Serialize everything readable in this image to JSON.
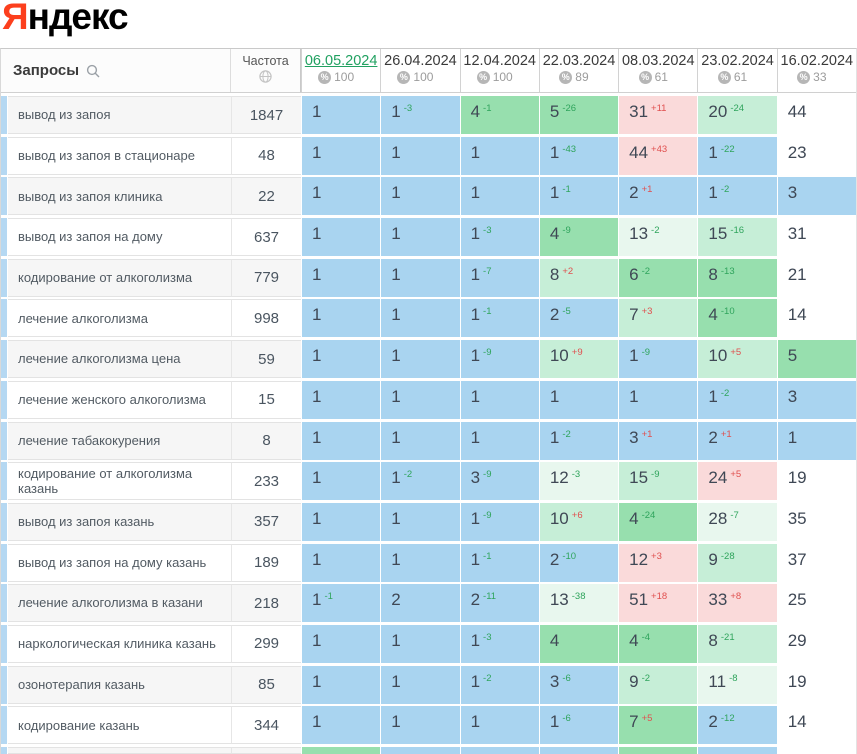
{
  "logo": {
    "first_letter": "Я",
    "rest": "ндекс",
    "first_letter_color": "#fc3f1d"
  },
  "icons": {
    "search_icon": "magnifier-outline",
    "globe_icon": "globe-outline",
    "percent_icon": "%"
  },
  "colors": {
    "top3_blue": "#a9d4f0",
    "top10_green": "#97dfae",
    "light_green": "#c6eed7",
    "pale_green": "#e8f7ee",
    "worse_pink": "#fadada",
    "delta_improved_green": "#2fa45c",
    "delta_worsened_red": "#e0504f",
    "active_date_green": "#21a161",
    "row_stripe_blue": "#b5d8f2"
  },
  "table": {
    "queries_header": "Запросы",
    "frequency_header": "Частота",
    "columns": [
      {
        "date": "06.05.2024",
        "share": "100",
        "active": true
      },
      {
        "date": "26.04.2024",
        "share": "100",
        "active": false
      },
      {
        "date": "12.04.2024",
        "share": "100",
        "active": false
      },
      {
        "date": "22.03.2024",
        "share": "89",
        "active": false
      },
      {
        "date": "08.03.2024",
        "share": "61",
        "active": false
      },
      {
        "date": "23.02.2024",
        "share": "61",
        "active": false
      },
      {
        "date": "16.02.2024",
        "share": "33",
        "active": false
      }
    ],
    "rows": [
      {
        "keyword": "вывод из запоя",
        "frequency": "1847",
        "cells": [
          {
            "pos": "1",
            "bg": "b"
          },
          {
            "pos": "1",
            "delta": "-3",
            "bg": "b"
          },
          {
            "pos": "4",
            "delta": "-1",
            "bg": "g"
          },
          {
            "pos": "5",
            "delta": "-26",
            "bg": "g"
          },
          {
            "pos": "31",
            "delta": "+11",
            "bg": "p"
          },
          {
            "pos": "20",
            "delta": "-24",
            "bg": "lg"
          },
          {
            "pos": "44",
            "bg": "w"
          }
        ]
      },
      {
        "keyword": "вывод из запоя в стационаре",
        "frequency": "48",
        "cells": [
          {
            "pos": "1",
            "bg": "b"
          },
          {
            "pos": "1",
            "bg": "b"
          },
          {
            "pos": "1",
            "bg": "b"
          },
          {
            "pos": "1",
            "delta": "-43",
            "bg": "b"
          },
          {
            "pos": "44",
            "delta": "+43",
            "bg": "p"
          },
          {
            "pos": "1",
            "delta": "-22",
            "bg": "b"
          },
          {
            "pos": "23",
            "bg": "w"
          }
        ]
      },
      {
        "keyword": "вывод из запоя клиника",
        "frequency": "22",
        "cells": [
          {
            "pos": "1",
            "bg": "b"
          },
          {
            "pos": "1",
            "bg": "b"
          },
          {
            "pos": "1",
            "bg": "b"
          },
          {
            "pos": "1",
            "delta": "-1",
            "bg": "b"
          },
          {
            "pos": "2",
            "delta": "+1",
            "bg": "b"
          },
          {
            "pos": "1",
            "delta": "-2",
            "bg": "b"
          },
          {
            "pos": "3",
            "bg": "b"
          }
        ]
      },
      {
        "keyword": "вывод из запоя на дому",
        "frequency": "637",
        "cells": [
          {
            "pos": "1",
            "bg": "b"
          },
          {
            "pos": "1",
            "bg": "b"
          },
          {
            "pos": "1",
            "delta": "-3",
            "bg": "b"
          },
          {
            "pos": "4",
            "delta": "-9",
            "bg": "g"
          },
          {
            "pos": "13",
            "delta": "-2",
            "bg": "vlg"
          },
          {
            "pos": "15",
            "delta": "-16",
            "bg": "lg"
          },
          {
            "pos": "31",
            "bg": "w"
          }
        ]
      },
      {
        "keyword": "кодирование от алкоголизма",
        "frequency": "779",
        "cells": [
          {
            "pos": "1",
            "bg": "b"
          },
          {
            "pos": "1",
            "bg": "b"
          },
          {
            "pos": "1",
            "delta": "-7",
            "bg": "b"
          },
          {
            "pos": "8",
            "delta": "+2",
            "bg": "lg"
          },
          {
            "pos": "6",
            "delta": "-2",
            "bg": "g"
          },
          {
            "pos": "8",
            "delta": "-13",
            "bg": "g"
          },
          {
            "pos": "21",
            "bg": "w"
          }
        ]
      },
      {
        "keyword": "лечение алкоголизма",
        "frequency": "998",
        "cells": [
          {
            "pos": "1",
            "bg": "b"
          },
          {
            "pos": "1",
            "bg": "b"
          },
          {
            "pos": "1",
            "delta": "-1",
            "bg": "b"
          },
          {
            "pos": "2",
            "delta": "-5",
            "bg": "b"
          },
          {
            "pos": "7",
            "delta": "+3",
            "bg": "lg"
          },
          {
            "pos": "4",
            "delta": "-10",
            "bg": "g"
          },
          {
            "pos": "14",
            "bg": "w"
          }
        ]
      },
      {
        "keyword": "лечение алкоголизма цена",
        "frequency": "59",
        "cells": [
          {
            "pos": "1",
            "bg": "b"
          },
          {
            "pos": "1",
            "bg": "b"
          },
          {
            "pos": "1",
            "delta": "-9",
            "bg": "b"
          },
          {
            "pos": "10",
            "delta": "+9",
            "bg": "lg"
          },
          {
            "pos": "1",
            "delta": "-9",
            "bg": "b"
          },
          {
            "pos": "10",
            "delta": "+5",
            "bg": "lg"
          },
          {
            "pos": "5",
            "bg": "g"
          }
        ]
      },
      {
        "keyword": "лечение женского алкоголизма",
        "frequency": "15",
        "cells": [
          {
            "pos": "1",
            "bg": "b"
          },
          {
            "pos": "1",
            "bg": "b"
          },
          {
            "pos": "1",
            "bg": "b"
          },
          {
            "pos": "1",
            "bg": "b"
          },
          {
            "pos": "1",
            "bg": "b"
          },
          {
            "pos": "1",
            "delta": "-2",
            "bg": "b"
          },
          {
            "pos": "3",
            "bg": "b"
          }
        ]
      },
      {
        "keyword": "лечение табакокурения",
        "frequency": "8",
        "cells": [
          {
            "pos": "1",
            "bg": "b"
          },
          {
            "pos": "1",
            "bg": "b"
          },
          {
            "pos": "1",
            "bg": "b"
          },
          {
            "pos": "1",
            "delta": "-2",
            "bg": "b"
          },
          {
            "pos": "3",
            "delta": "+1",
            "bg": "b"
          },
          {
            "pos": "2",
            "delta": "+1",
            "bg": "b"
          },
          {
            "pos": "1",
            "bg": "b"
          }
        ]
      },
      {
        "keyword": "кодирование от алкоголизма казань",
        "frequency": "233",
        "cells": [
          {
            "pos": "1",
            "bg": "b"
          },
          {
            "pos": "1",
            "delta": "-2",
            "bg": "b"
          },
          {
            "pos": "3",
            "delta": "-9",
            "bg": "b"
          },
          {
            "pos": "12",
            "delta": "-3",
            "bg": "vlg"
          },
          {
            "pos": "15",
            "delta": "-9",
            "bg": "lg"
          },
          {
            "pos": "24",
            "delta": "+5",
            "bg": "p"
          },
          {
            "pos": "19",
            "bg": "w"
          }
        ]
      },
      {
        "keyword": "вывод из запоя казань",
        "frequency": "357",
        "cells": [
          {
            "pos": "1",
            "bg": "b"
          },
          {
            "pos": "1",
            "bg": "b"
          },
          {
            "pos": "1",
            "delta": "-9",
            "bg": "b"
          },
          {
            "pos": "10",
            "delta": "+6",
            "bg": "lg"
          },
          {
            "pos": "4",
            "delta": "-24",
            "bg": "g"
          },
          {
            "pos": "28",
            "delta": "-7",
            "bg": "vlg"
          },
          {
            "pos": "35",
            "bg": "w"
          }
        ]
      },
      {
        "keyword": "вывод из запоя на дому казань",
        "frequency": "189",
        "cells": [
          {
            "pos": "1",
            "bg": "b"
          },
          {
            "pos": "1",
            "bg": "b"
          },
          {
            "pos": "1",
            "delta": "-1",
            "bg": "b"
          },
          {
            "pos": "2",
            "delta": "-10",
            "bg": "b"
          },
          {
            "pos": "12",
            "delta": "+3",
            "bg": "p"
          },
          {
            "pos": "9",
            "delta": "-28",
            "bg": "lg"
          },
          {
            "pos": "37",
            "bg": "w"
          }
        ]
      },
      {
        "keyword": "лечение алкоголизма в казани",
        "frequency": "218",
        "cells": [
          {
            "pos": "1",
            "delta": "-1",
            "bg": "b"
          },
          {
            "pos": "2",
            "bg": "b"
          },
          {
            "pos": "2",
            "delta": "-11",
            "bg": "b"
          },
          {
            "pos": "13",
            "delta": "-38",
            "bg": "vlg"
          },
          {
            "pos": "51",
            "delta": "+18",
            "bg": "p"
          },
          {
            "pos": "33",
            "delta": "+8",
            "bg": "p"
          },
          {
            "pos": "25",
            "bg": "w"
          }
        ]
      },
      {
        "keyword": "наркологическая клиника казань",
        "frequency": "299",
        "cells": [
          {
            "pos": "1",
            "bg": "b"
          },
          {
            "pos": "1",
            "bg": "b"
          },
          {
            "pos": "1",
            "delta": "-3",
            "bg": "b"
          },
          {
            "pos": "4",
            "bg": "g"
          },
          {
            "pos": "4",
            "delta": "-4",
            "bg": "g"
          },
          {
            "pos": "8",
            "delta": "-21",
            "bg": "lg"
          },
          {
            "pos": "29",
            "bg": "w"
          }
        ]
      },
      {
        "keyword": "озонотерапия казань",
        "frequency": "85",
        "cells": [
          {
            "pos": "1",
            "bg": "b"
          },
          {
            "pos": "1",
            "bg": "b"
          },
          {
            "pos": "1",
            "delta": "-2",
            "bg": "b"
          },
          {
            "pos": "3",
            "delta": "-6",
            "bg": "b"
          },
          {
            "pos": "9",
            "delta": "-2",
            "bg": "lg"
          },
          {
            "pos": "11",
            "delta": "-8",
            "bg": "vlg"
          },
          {
            "pos": "19",
            "bg": "w"
          }
        ]
      },
      {
        "keyword": "кодирование казань",
        "frequency": "344",
        "cells": [
          {
            "pos": "1",
            "bg": "b"
          },
          {
            "pos": "1",
            "bg": "b"
          },
          {
            "pos": "1",
            "bg": "b"
          },
          {
            "pos": "1",
            "delta": "-6",
            "bg": "b"
          },
          {
            "pos": "7",
            "delta": "+5",
            "bg": "g"
          },
          {
            "pos": "2",
            "delta": "-12",
            "bg": "b"
          },
          {
            "pos": "14",
            "bg": "w"
          }
        ]
      }
    ],
    "partial_row_bgs": [
      "g",
      "b",
      "b",
      "b",
      "g",
      "b",
      "w"
    ]
  }
}
